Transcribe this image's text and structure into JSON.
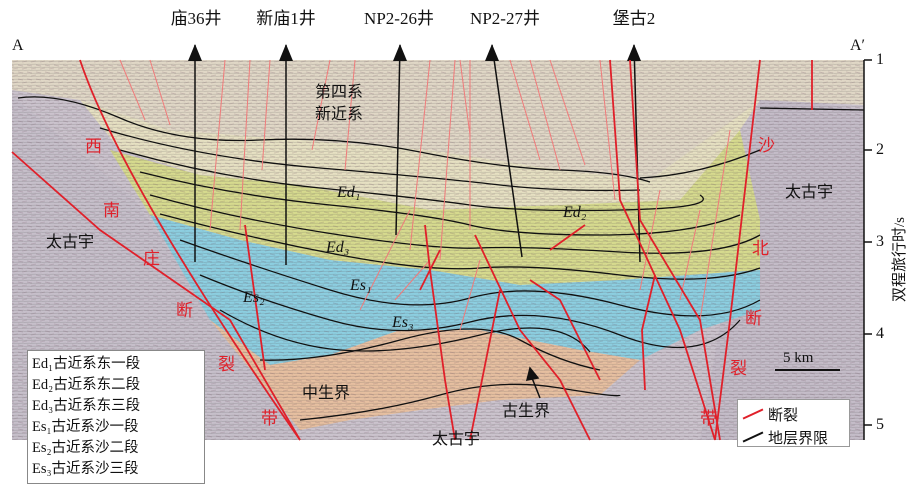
{
  "wells": [
    "庙36井",
    "新庙1井",
    "NP2-26井",
    "NP2-27井",
    "堡古2"
  ],
  "corners": {
    "left": "A",
    "right": "A′"
  },
  "depth_axis": {
    "ticks": [
      "1",
      "2",
      "3",
      "4",
      "5"
    ],
    "title": "双程旅行时/s"
  },
  "fault_labels": {
    "west": [
      "西",
      "南",
      "庄",
      "断",
      "裂",
      "带"
    ],
    "east": [
      "沙",
      "北",
      "断",
      "裂",
      "带"
    ]
  },
  "units": {
    "quaternary": [
      "第四系",
      "新近系"
    ],
    "ed1": "Ed₁",
    "ed2": "Ed₂",
    "ed3": "Ed₃",
    "es1": "Es₁",
    "es2": "Es₂",
    "es3": "Es₃",
    "archean_left": "太古宇",
    "archean_right": "太古宇",
    "archean_bottom": "太古宇",
    "mesozoic": "中生界",
    "paleozoic": "古生界"
  },
  "legend": [
    "Ed₁古近系东一段",
    "Ed₂古近系东二段",
    "Ed₃古近系东三段",
    "Es₁古近系沙一段",
    "Es₂古近系沙二段",
    "Es₃古近系沙三段"
  ],
  "scale_bar": "5 km",
  "key": {
    "fault": "断裂",
    "boundary": "地层界限"
  },
  "colors": {
    "fault": "#e0202a",
    "boundary": "#111111",
    "ed": "#d9dc8c",
    "es": "#8fcfe0",
    "mesozoic": "#e8c0a0",
    "archean": "#c8c0cc",
    "cenozoic_top": "#e2d8c8"
  }
}
